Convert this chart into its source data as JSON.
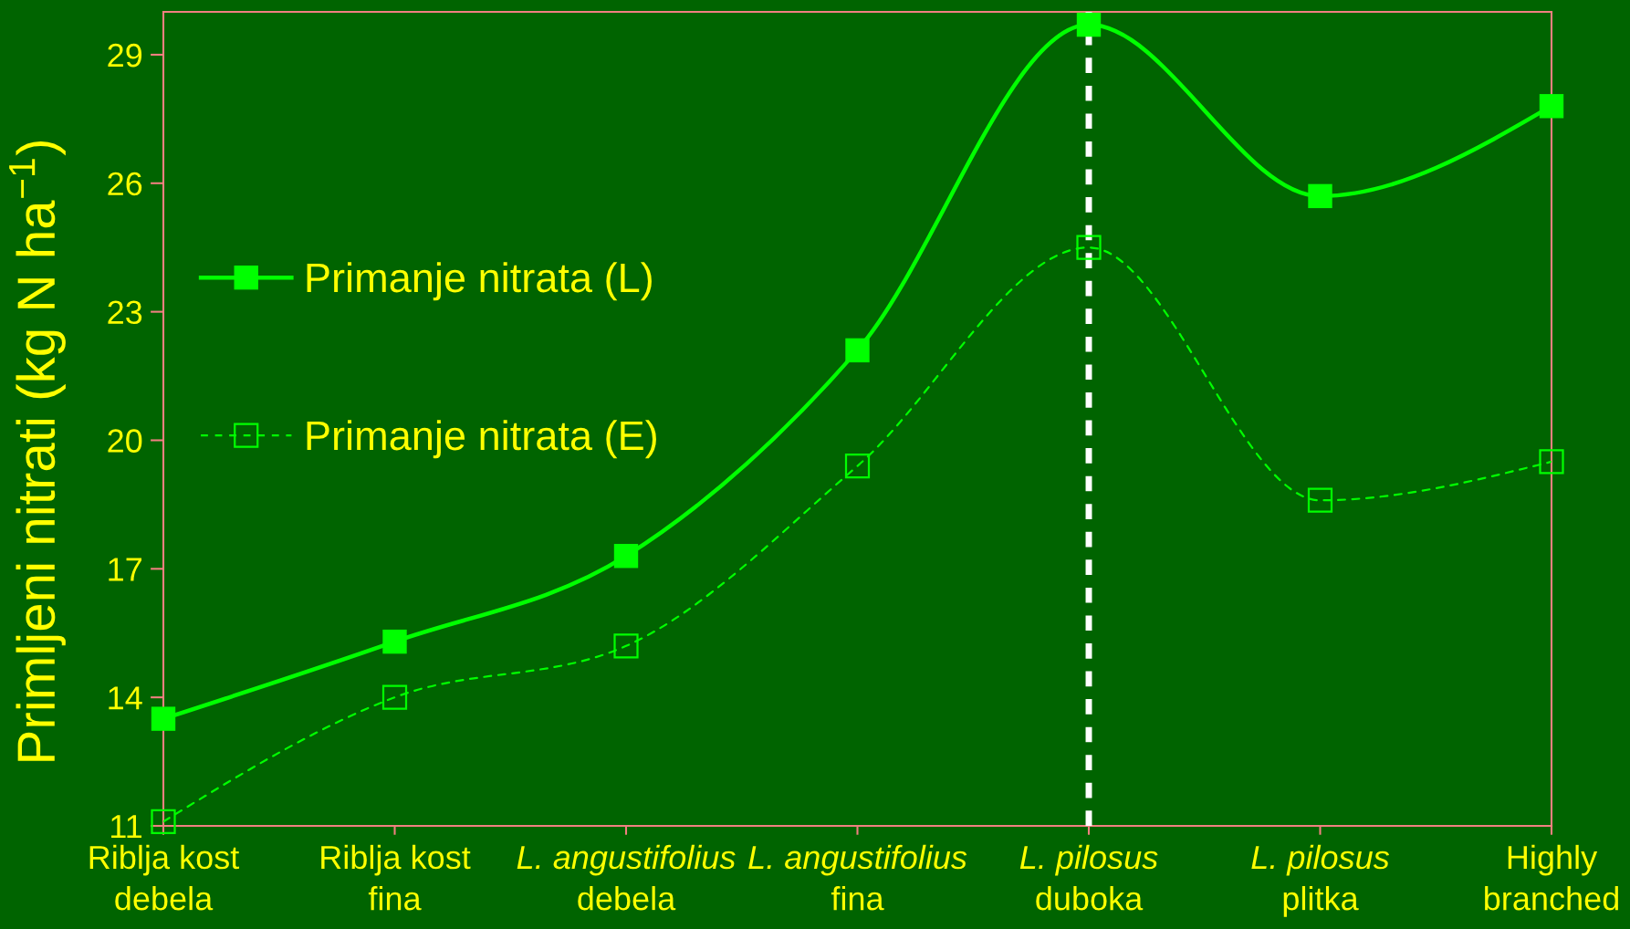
{
  "chart_data": {
    "type": "line",
    "ylabel": "Primljeni nitrati (kg N ha$^{−1}$)",
    "categories": [
      "Riblja kost\ndebela",
      "Riblja kost\nfina",
      "L. angustifolius\ndebela",
      "L. angustifolius\nfina",
      "L. pilosus\nduboka",
      "L. pilosus\nplitka",
      "Highly\nbranched"
    ],
    "series": [
      {
        "name": "Primanje nitrata (L)",
        "color": "#00ff00",
        "line_style": "solid",
        "values": [
          13.5,
          15.3,
          17.3,
          22.1,
          29.7,
          25.7,
          27.8
        ]
      },
      {
        "name": "Primanje nitrata (E)",
        "color": "#00ff00",
        "line_style": "dashed",
        "values": [
          11.1,
          14.0,
          15.2,
          19.4,
          24.5,
          18.6,
          19.5
        ]
      }
    ],
    "marker": "square",
    "ylim": [
      11,
      30
    ],
    "yticks": [
      11,
      14,
      17,
      20,
      23,
      26,
      29
    ],
    "ref_lines": [
      {
        "axis": "x",
        "value": "L. pilosus\nduboka",
        "color": "#ffffff",
        "line_style": "dashed"
      }
    ],
    "legend": "left"
  }
}
